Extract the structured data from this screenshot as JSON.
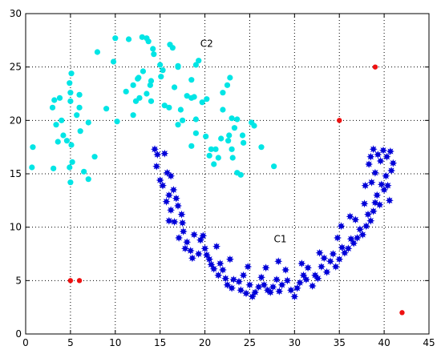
{
  "chart_data": {
    "type": "scatter",
    "xlim": [
      0,
      45
    ],
    "ylim": [
      0,
      30
    ],
    "xticks": [
      0,
      5,
      10,
      15,
      20,
      25,
      30,
      35,
      40,
      45
    ],
    "yticks": [
      0,
      5,
      10,
      15,
      20,
      25,
      30
    ],
    "grid": "dotted",
    "annotations": [
      {
        "text": "C2",
        "x": 20.2,
        "y": 26.9
      },
      {
        "text": "C1",
        "x": 28.4,
        "y": 8.6
      }
    ],
    "series": [
      {
        "color": "#00e5e5",
        "marker": "circle",
        "points": [
          [
            0.8,
            17.5
          ],
          [
            0.7,
            15.6
          ],
          [
            3.2,
            21.9
          ],
          [
            3.0,
            21.2
          ],
          [
            3.4,
            19.6
          ],
          [
            3.8,
            22.1
          ],
          [
            4.0,
            20.0
          ],
          [
            4.2,
            18.6
          ],
          [
            3.6,
            18.0
          ],
          [
            4.6,
            18.1
          ],
          [
            5.1,
            24.4
          ],
          [
            4.9,
            23.5
          ],
          [
            5.0,
            22.6
          ],
          [
            5.0,
            21.8
          ],
          [
            5.1,
            17.7
          ],
          [
            5.2,
            16.1
          ],
          [
            4.9,
            15.6
          ],
          [
            5.0,
            14.2
          ],
          [
            6.0,
            21.2
          ],
          [
            5.7,
            20.5
          ],
          [
            6.1,
            19.0
          ],
          [
            6.5,
            15.2
          ],
          [
            6.0,
            22.4
          ],
          [
            3.1,
            15.5
          ],
          [
            7.0,
            19.8
          ],
          [
            7.0,
            14.5
          ],
          [
            7.7,
            16.6
          ],
          [
            8.0,
            26.4
          ],
          [
            9.0,
            21.1
          ],
          [
            10.0,
            27.7
          ],
          [
            9.8,
            25.5
          ],
          [
            10.2,
            19.9
          ],
          [
            11.2,
            22.7
          ],
          [
            11.5,
            27.6
          ],
          [
            12.0,
            23.3
          ],
          [
            12.0,
            20.5
          ],
          [
            12.5,
            23.9
          ],
          [
            12.6,
            24.0
          ],
          [
            12.3,
            21.8
          ],
          [
            12.7,
            22.1
          ],
          [
            13.0,
            27.8
          ],
          [
            13.1,
            24.6
          ],
          [
            13.5,
            27.7
          ],
          [
            13.7,
            27.4
          ],
          [
            13.5,
            22.5
          ],
          [
            13.9,
            23.3
          ],
          [
            14.0,
            21.8
          ],
          [
            14.2,
            26.7
          ],
          [
            14.3,
            26.2
          ],
          [
            14.0,
            23.7
          ],
          [
            15.0,
            25.2
          ],
          [
            15.1,
            24.1
          ],
          [
            15.3,
            24.7
          ],
          [
            15.5,
            21.4
          ],
          [
            16.1,
            27.1
          ],
          [
            16.4,
            26.8
          ],
          [
            16.0,
            21.2
          ],
          [
            16.6,
            23.1
          ],
          [
            17.0,
            25.1
          ],
          [
            17.0,
            25.0
          ],
          [
            17.3,
            21.0
          ],
          [
            17.0,
            19.6
          ],
          [
            17.5,
            20.0
          ],
          [
            18.0,
            22.3
          ],
          [
            18.5,
            22.1
          ],
          [
            18.5,
            23.8
          ],
          [
            19.0,
            25.2
          ],
          [
            18.8,
            22.2
          ],
          [
            18.5,
            17.6
          ],
          [
            19.3,
            25.6
          ],
          [
            19.7,
            21.7
          ],
          [
            19.0,
            20.1
          ],
          [
            19.0,
            18.8
          ],
          [
            20.1,
            18.5
          ],
          [
            20.7,
            17.3
          ],
          [
            20.5,
            16.7
          ],
          [
            21.0,
            15.9
          ],
          [
            21.2,
            17.3
          ],
          [
            21.8,
            18.3
          ],
          [
            22.0,
            22.6
          ],
          [
            22.5,
            23.3
          ],
          [
            22.8,
            24.0
          ],
          [
            22.0,
            21.0
          ],
          [
            23.0,
            20.2
          ],
          [
            23.3,
            19.3
          ],
          [
            22.7,
            18.6
          ],
          [
            22.6,
            18.1
          ],
          [
            23.0,
            17.3
          ],
          [
            23.1,
            16.5
          ],
          [
            23.6,
            15.1
          ],
          [
            24.0,
            14.9
          ],
          [
            25.2,
            19.8
          ],
          [
            25.5,
            19.5
          ],
          [
            24.2,
            18.6
          ],
          [
            24.3,
            17.9
          ],
          [
            26.3,
            17.5
          ],
          [
            27.7,
            15.7
          ],
          [
            23.6,
            20.1
          ],
          [
            21.5,
            16.5
          ],
          [
            20.2,
            22.0
          ]
        ]
      },
      {
        "color": "#0000d8",
        "marker": "star",
        "points": [
          [
            14.4,
            17.3
          ],
          [
            14.7,
            16.8
          ],
          [
            14.6,
            15.7
          ],
          [
            15.5,
            16.9
          ],
          [
            15.8,
            15.1
          ],
          [
            16.2,
            14.8
          ],
          [
            16.5,
            13.5
          ],
          [
            16.0,
            13.0
          ],
          [
            16.8,
            12.7
          ],
          [
            17.0,
            12.0
          ],
          [
            16.2,
            11.6
          ],
          [
            17.4,
            11.2
          ],
          [
            16.6,
            10.5
          ],
          [
            17.6,
            9.6
          ],
          [
            17.1,
            9.0
          ],
          [
            18.0,
            8.6
          ],
          [
            17.8,
            8.0
          ],
          [
            18.4,
            7.8
          ],
          [
            18.6,
            7.1
          ],
          [
            19.3,
            7.5
          ],
          [
            19.5,
            8.8
          ],
          [
            20.0,
            8.0
          ],
          [
            20.2,
            7.4
          ],
          [
            20.5,
            7.0
          ],
          [
            20.7,
            6.5
          ],
          [
            21.0,
            6.1
          ],
          [
            21.5,
            5.5
          ],
          [
            21.7,
            6.6
          ],
          [
            22.0,
            6.0
          ],
          [
            22.3,
            5.2
          ],
          [
            22.5,
            4.6
          ],
          [
            23.0,
            4.3
          ],
          [
            23.2,
            5.1
          ],
          [
            23.8,
            4.9
          ],
          [
            24.0,
            4.1
          ],
          [
            24.3,
            5.5
          ],
          [
            24.6,
            3.8
          ],
          [
            25.0,
            4.6
          ],
          [
            25.3,
            3.5
          ],
          [
            25.6,
            3.9
          ],
          [
            26.0,
            4.4
          ],
          [
            26.3,
            5.3
          ],
          [
            26.6,
            4.6
          ],
          [
            27.0,
            4.1
          ],
          [
            27.3,
            3.9
          ],
          [
            27.6,
            4.4
          ],
          [
            28.0,
            5.1
          ],
          [
            28.3,
            4.0
          ],
          [
            28.6,
            4.6
          ],
          [
            29.0,
            6.0
          ],
          [
            29.2,
            5.0
          ],
          [
            29.6,
            4.1
          ],
          [
            30.0,
            3.5
          ],
          [
            30.3,
            4.3
          ],
          [
            30.6,
            4.8
          ],
          [
            31.0,
            5.5
          ],
          [
            31.3,
            5.1
          ],
          [
            31.5,
            6.2
          ],
          [
            32.0,
            4.5
          ],
          [
            32.3,
            5.5
          ],
          [
            32.6,
            5.2
          ],
          [
            33.0,
            6.3
          ],
          [
            33.3,
            7.1
          ],
          [
            33.6,
            5.8
          ],
          [
            34.0,
            6.8
          ],
          [
            34.3,
            7.5
          ],
          [
            34.6,
            6.3
          ],
          [
            35.0,
            7.0
          ],
          [
            35.3,
            8.1
          ],
          [
            35.6,
            7.6
          ],
          [
            36.0,
            8.0
          ],
          [
            36.3,
            8.9
          ],
          [
            36.6,
            8.5
          ],
          [
            37.0,
            9.0
          ],
          [
            37.3,
            9.8
          ],
          [
            37.6,
            9.3
          ],
          [
            38.0,
            10.1
          ],
          [
            38.2,
            11.2
          ],
          [
            38.5,
            10.6
          ],
          [
            38.8,
            11.5
          ],
          [
            39.0,
            12.3
          ],
          [
            39.2,
            13.0
          ],
          [
            39.5,
            12.1
          ],
          [
            39.7,
            14.0
          ],
          [
            40.0,
            13.5
          ],
          [
            40.2,
            14.8
          ],
          [
            40.4,
            13.9
          ],
          [
            40.6,
            12.5
          ],
          [
            40.8,
            15.3
          ],
          [
            41.0,
            16.0
          ],
          [
            39.3,
            16.8
          ],
          [
            39.6,
            16.2
          ],
          [
            38.8,
            17.3
          ],
          [
            38.5,
            16.6
          ],
          [
            39.9,
            17.2
          ],
          [
            40.3,
            16.6
          ],
          [
            40.7,
            17.1
          ],
          [
            38.3,
            15.9
          ],
          [
            38.6,
            14.2
          ],
          [
            39.0,
            15.1
          ],
          [
            15.0,
            14.4
          ],
          [
            15.3,
            13.9
          ],
          [
            16.0,
            10.6
          ],
          [
            15.7,
            12.4
          ],
          [
            17.5,
            10.4
          ],
          [
            18.8,
            9.3
          ],
          [
            19.8,
            9.2
          ],
          [
            21.3,
            8.2
          ],
          [
            22.8,
            7.0
          ],
          [
            24.8,
            6.3
          ],
          [
            26.8,
            6.2
          ],
          [
            28.2,
            6.8
          ],
          [
            30.8,
            6.6
          ],
          [
            32.8,
            7.6
          ],
          [
            34.8,
            9.0
          ],
          [
            36.8,
            10.7
          ],
          [
            37.8,
            12.2
          ],
          [
            36.2,
            11.0
          ],
          [
            35.2,
            10.1
          ],
          [
            37.9,
            13.9
          ]
        ]
      },
      {
        "color": "#ee1111",
        "marker": "circle",
        "points": [
          [
            5.0,
            5.0
          ],
          [
            6.0,
            5.0
          ],
          [
            35.0,
            20.0
          ],
          [
            39.0,
            25.0
          ],
          [
            42.0,
            2.0
          ]
        ]
      }
    ]
  }
}
